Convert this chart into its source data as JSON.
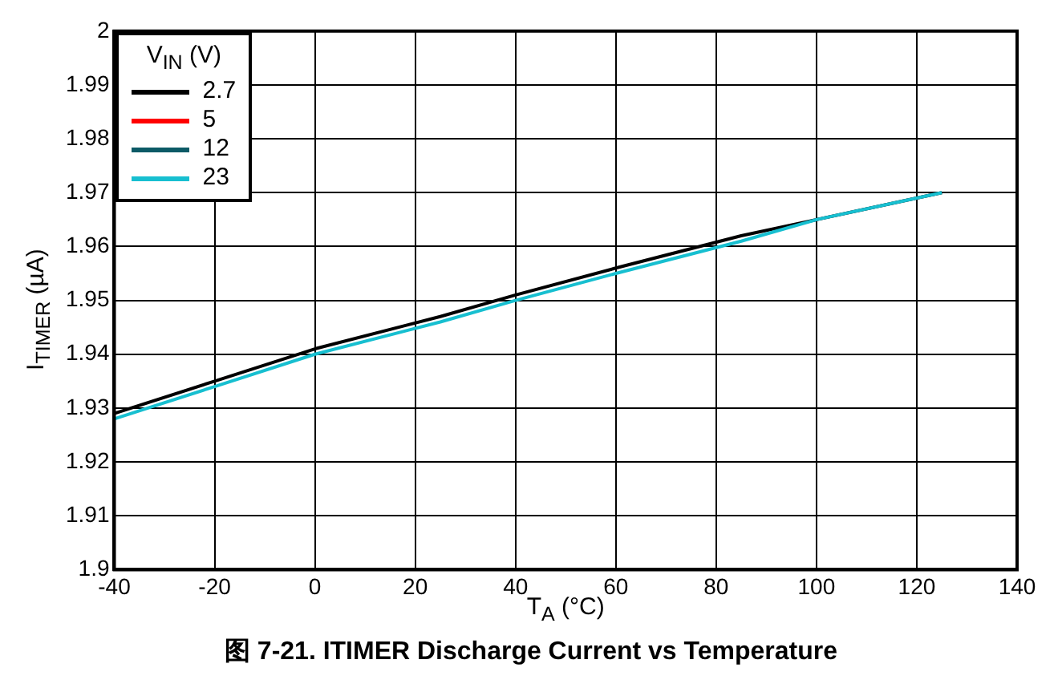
{
  "chart_data": {
    "type": "line",
    "title": "图 7-21. ITIMER Discharge Current vs Temperature",
    "xlabel": "T$_{A}$ (°C)",
    "ylabel": "I$_{TIMER}$ (µA)",
    "legend_title": "V$_{IN}$ (V)",
    "xlim": [
      -40,
      140
    ],
    "xticks": [
      -40,
      -20,
      0,
      20,
      40,
      60,
      80,
      100,
      120,
      140
    ],
    "ylim": [
      1.9,
      2
    ],
    "yticks": [
      1.9,
      1.91,
      1.92,
      1.93,
      1.94,
      1.95,
      1.96,
      1.97,
      1.98,
      1.99,
      2
    ],
    "grid": true,
    "legend": "top left",
    "marker": "none",
    "line_style": "solid",
    "series": [
      {
        "name": "2.7",
        "color": "#000000",
        "x": [
          -40,
          -20,
          0,
          25,
          40,
          60,
          85,
          100,
          125
        ],
        "values": [
          1.929,
          1.935,
          1.941,
          1.947,
          1.951,
          1.956,
          1.962,
          1.965,
          1.97
        ]
      },
      {
        "name": "5",
        "color": "#ff0000"
      },
      {
        "name": "12",
        "color": "#0c5a66"
      },
      {
        "name": "23",
        "color": "#17bfd0",
        "x": [
          -40,
          -20,
          0,
          25,
          40,
          60,
          85,
          100,
          125
        ],
        "values": [
          1.928,
          1.934,
          1.94,
          1.946,
          1.95,
          1.955,
          1.961,
          1.965,
          1.97
        ]
      }
    ]
  }
}
